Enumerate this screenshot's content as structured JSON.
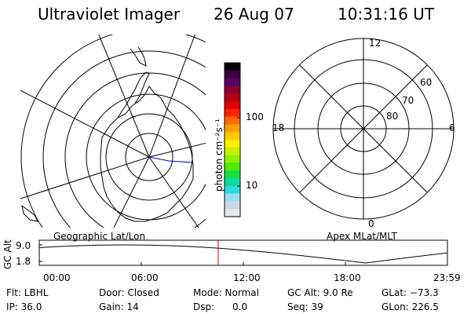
{
  "header": {
    "instrument": "Ultraviolet Imager",
    "date": "26 Aug 07",
    "time": "10:31:16 UT"
  },
  "colorbar": {
    "unit": "photon cm⁻²s⁻¹",
    "tick_labels": [
      "100",
      "10"
    ],
    "colors": [
      "#000000",
      "#3a0040",
      "#5a0060",
      "#8a0030",
      "#b00010",
      "#dd0000",
      "#ff2000",
      "#ff6a00",
      "#ff9c00",
      "#ffc800",
      "#f8f000",
      "#c8f000",
      "#8ef000",
      "#4ee800",
      "#18e040",
      "#10d8a0",
      "#30d8e0",
      "#98e0ee",
      "#c8d8e8",
      "#e6e6ec"
    ]
  },
  "polar_plot": {
    "labels": {
      "top": "12",
      "bottom": "0",
      "left": "18",
      "right": "6"
    },
    "lat_labels": [
      "60",
      "70",
      "80"
    ]
  },
  "altitude_strip": {
    "left_title": "Geographic Lat/Lon",
    "right_title": "Apex MLat/MLT",
    "y_axis_label": "GC Alt",
    "y_ticks": [
      "9.0",
      "1.8"
    ],
    "x_ticks": [
      "00:00",
      "06:00",
      "12:00",
      "18:00",
      "23:59"
    ],
    "current_time_hours": 10.52,
    "curve_color": "#000000",
    "marker_color": "#cc0000"
  },
  "info": {
    "row1": {
      "flt": "Flt: LBHL",
      "door": "Door: Closed",
      "mode": "Mode: Normal",
      "gc_alt": "GC Alt: 9.0 Re",
      "glat": "GLat: −73.3"
    },
    "row2": {
      "ip": "IP: 36.0",
      "gain": "Gain: 14",
      "dsp": "Dsp:      0.0",
      "seq": "Seq: 39",
      "glon": "GLon: 226.5"
    }
  }
}
